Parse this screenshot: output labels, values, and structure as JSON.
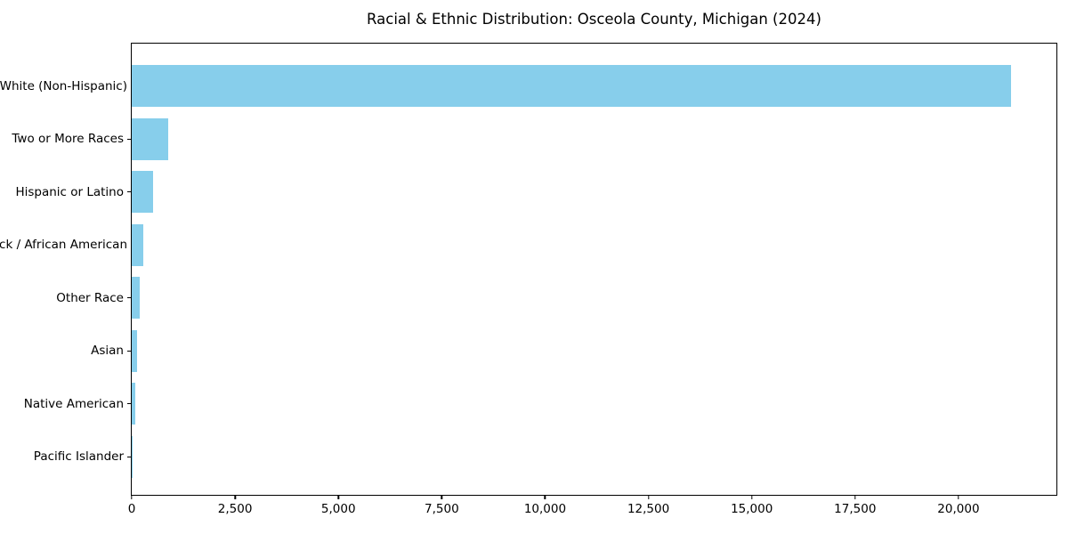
{
  "chart_data": {
    "type": "bar",
    "orientation": "horizontal",
    "title": "Racial & Ethnic Distribution: Osceola County, Michigan (2024)",
    "categories": [
      "White (Non-Hispanic)",
      "Two or More Races",
      "Hispanic or Latino",
      "Black / African American",
      "Other Race",
      "Asian",
      "Native American",
      "Pacific Islander"
    ],
    "values": [
      21270,
      890,
      510,
      290,
      200,
      120,
      80,
      10
    ],
    "xlabel": "",
    "ylabel": "",
    "xlim": [
      0,
      22370
    ],
    "x_ticks": [
      0,
      2500,
      5000,
      7500,
      10000,
      12500,
      15000,
      17500,
      20000
    ],
    "x_tick_labels": [
      "0",
      "2,500",
      "5,000",
      "7,500",
      "10,000",
      "12,500",
      "15,000",
      "17,500",
      "20,000"
    ],
    "bar_color": "#87CEEB",
    "axis_color": "#000000",
    "background_color": "#ffffff",
    "grid": false,
    "legend": null
  }
}
